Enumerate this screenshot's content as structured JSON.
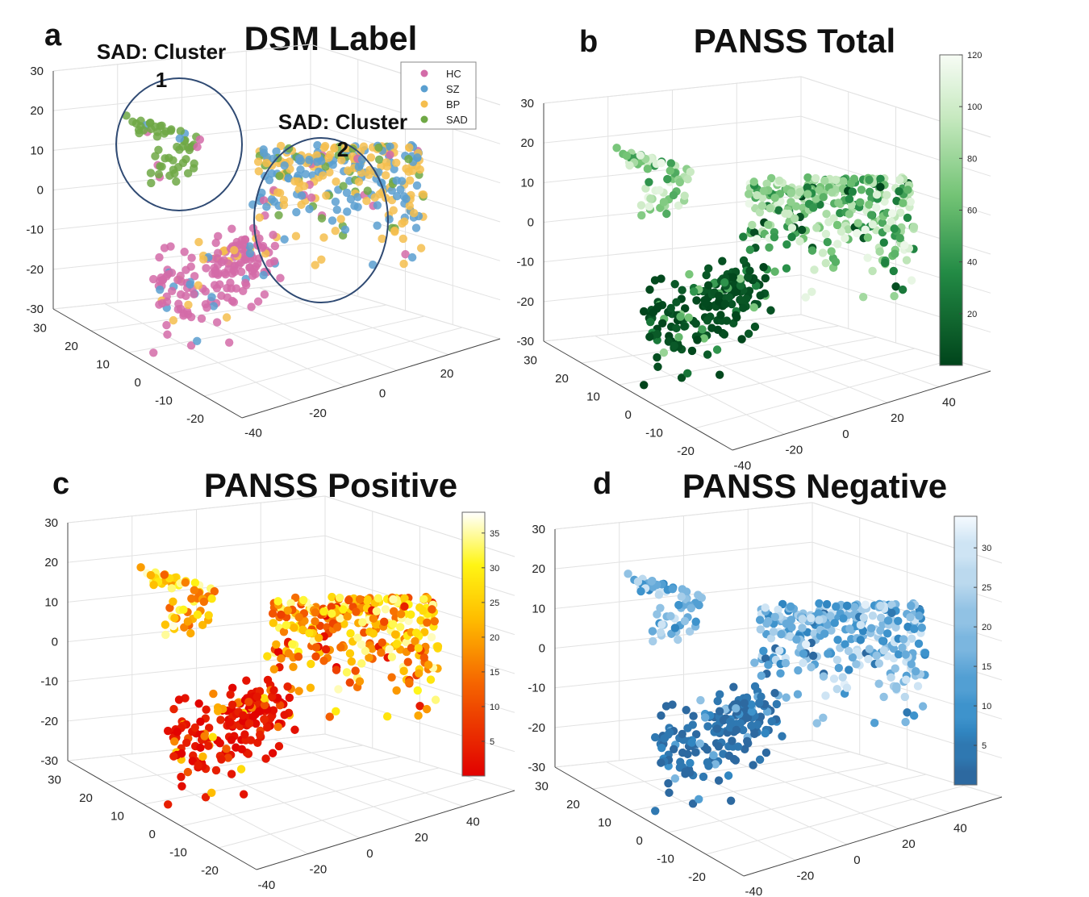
{
  "chart_data": [
    {
      "panel": "a",
      "type": "scatter",
      "title": "DSM Label",
      "xlim": [
        -40,
        40
      ],
      "ylim": [
        -20,
        30
      ],
      "zlim": [
        -30,
        30
      ],
      "x_ticks": [
        -40,
        -20,
        0,
        20
      ],
      "y_ticks": [
        -20,
        -10,
        0,
        10,
        20,
        30
      ],
      "z_ticks": [
        -30,
        -20,
        -10,
        0,
        10,
        20,
        30
      ],
      "x_tick_labels": [
        "-40",
        "-20",
        "0",
        "20"
      ],
      "y_tick_labels": [
        "-20",
        "-10",
        "0",
        "10",
        "20",
        "30"
      ],
      "z_tick_labels": [
        "-30",
        "-20",
        "-10",
        "0",
        "10",
        "20",
        "30"
      ],
      "legend_position": "top-right",
      "series": [
        {
          "name": "HC",
          "color": "#d36ba8"
        },
        {
          "name": "SZ",
          "color": "#5a9fd0"
        },
        {
          "name": "BP",
          "color": "#f5be4e"
        },
        {
          "name": "SAD",
          "color": "#6fa845"
        }
      ],
      "annotations": [
        {
          "line1": "SAD: Cluster",
          "line2": "1"
        },
        {
          "line1": "SAD: Cluster",
          "line2": "2"
        }
      ]
    },
    {
      "panel": "b",
      "type": "scatter",
      "title": "PANSS Total",
      "xlim": [
        -40,
        40
      ],
      "ylim": [
        -20,
        30
      ],
      "zlim": [
        -30,
        30
      ],
      "x_tick_labels": [
        "-40",
        "-20",
        "0",
        "20",
        "40"
      ],
      "y_tick_labels": [
        "-20",
        "-10",
        "0",
        "10",
        "20",
        "30"
      ],
      "z_tick_labels": [
        "-30",
        "-20",
        "-10",
        "0",
        "10",
        "20",
        "30"
      ],
      "colorbar": {
        "colormap": "greens",
        "range": [
          0,
          120
        ],
        "tick_labels": [
          "20",
          "40",
          "60",
          "80",
          "100",
          "120"
        ],
        "ticks": [
          20,
          40,
          60,
          80,
          100,
          120
        ]
      }
    },
    {
      "panel": "c",
      "type": "scatter",
      "title": "PANSS Positive",
      "xlim": [
        -40,
        40
      ],
      "ylim": [
        -20,
        30
      ],
      "zlim": [
        -30,
        30
      ],
      "x_tick_labels": [
        "-40",
        "-20",
        "0",
        "20",
        "40"
      ],
      "y_tick_labels": [
        "-20",
        "-10",
        "0",
        "10",
        "20",
        "30"
      ],
      "z_tick_labels": [
        "-30",
        "-20",
        "-10",
        "0",
        "10",
        "20",
        "30"
      ],
      "colorbar": {
        "colormap": "autumn",
        "range": [
          0,
          38
        ],
        "tick_labels": [
          "5",
          "10",
          "15",
          "20",
          "25",
          "30",
          "35"
        ],
        "ticks": [
          5,
          10,
          15,
          20,
          25,
          30,
          35
        ]
      }
    },
    {
      "panel": "d",
      "type": "scatter",
      "title": "PANSS Negative",
      "xlim": [
        -40,
        40
      ],
      "ylim": [
        -20,
        30
      ],
      "zlim": [
        -30,
        30
      ],
      "x_tick_labels": [
        "-40",
        "-20",
        "0",
        "20",
        "40"
      ],
      "y_tick_labels": [
        "-20",
        "-10",
        "0",
        "10",
        "20",
        "30"
      ],
      "z_tick_labels": [
        "-30",
        "-20",
        "-10",
        "0",
        "10",
        "20",
        "30"
      ],
      "colorbar": {
        "colormap": "blues-discrete",
        "range": [
          0,
          34
        ],
        "tick_labels": [
          "5",
          "10",
          "15",
          "20",
          "25",
          "30"
        ],
        "ticks": [
          5,
          10,
          15,
          20,
          25,
          30
        ]
      }
    }
  ]
}
